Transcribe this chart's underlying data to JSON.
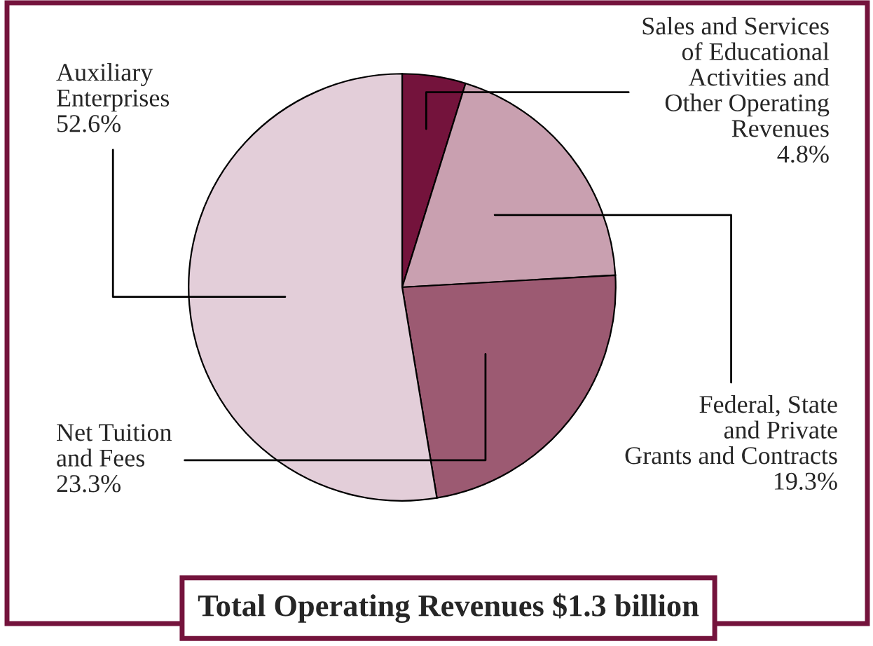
{
  "chart_data": {
    "type": "pie",
    "title": "Total Operating Revenues $1.3 billion",
    "categories": [
      "Sales and Services\nof Educational\nActivities and\nOther Operating\nRevenues",
      "Federal, State\nand Private\nGrants and Contracts",
      "Net Tuition\nand Fees",
      "Auxiliary\nEnterprises"
    ],
    "values": [
      4.8,
      19.3,
      23.3,
      52.6
    ],
    "value_labels": [
      "4.8%",
      "19.3%",
      "23.3%",
      "52.6%"
    ],
    "colors": [
      "#74133c",
      "#c9a0b0",
      "#9c5a72",
      "#e3ced9"
    ]
  }
}
